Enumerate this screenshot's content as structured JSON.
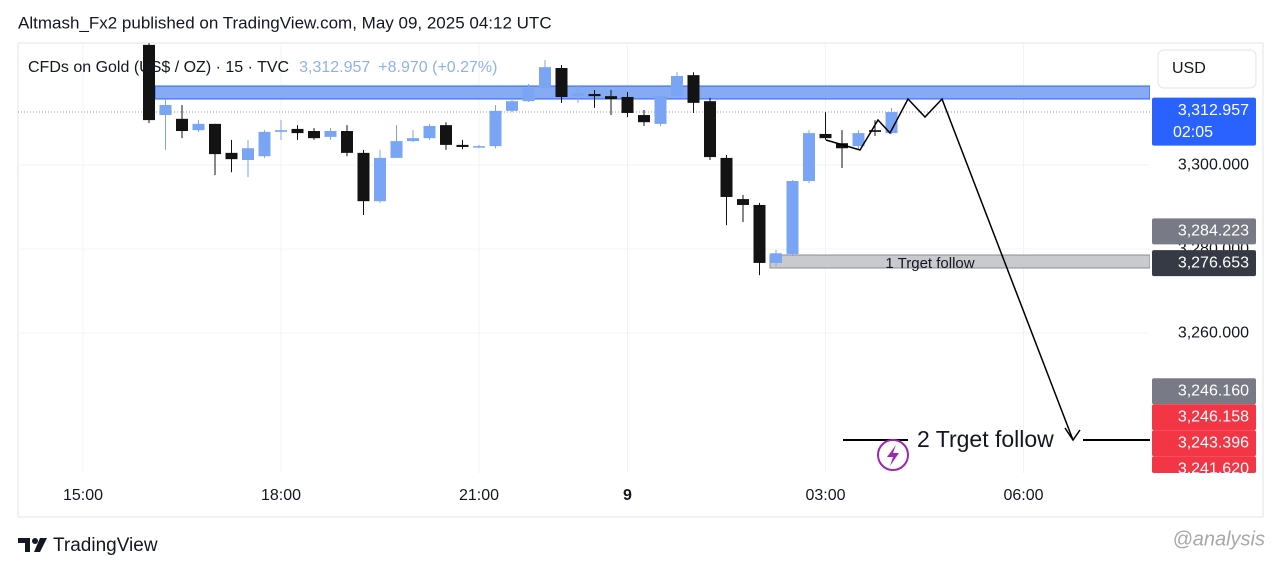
{
  "header": {
    "published": "Altmash_Fx2 published on TradingView.com, May 09, 2025 04:12 UTC",
    "symbol": "CFDs on Gold (US$ / OZ) · 15 · TVC",
    "last": "3,312.957",
    "change": "+8.970 (+0.27%)"
  },
  "currency": "USD",
  "chart_data": {
    "type": "candlestick",
    "categories": [
      null,
      null,
      null,
      null,
      null,
      null,
      null,
      null,
      null,
      null,
      null,
      null,
      null,
      null,
      null,
      null,
      null,
      null,
      null,
      null,
      null,
      null,
      null,
      null,
      null,
      null,
      null,
      null,
      null,
      null,
      null,
      null,
      null,
      null,
      null,
      null,
      null,
      null,
      null,
      null,
      null,
      null,
      null,
      null,
      null,
      null
    ],
    "open": [
      3328.6,
      3311.9,
      3311.0,
      3308.3,
      3309.8,
      3302.9,
      3301.2,
      3302.1,
      3307.9,
      3308.6,
      3308.1,
      3306.7,
      3308.1,
      3302.9,
      3291.4,
      3301.7,
      3305.7,
      3306.4,
      3309.5,
      3304.8,
      3304.3,
      3304.5,
      3312.9,
      3315.2,
      3318.3,
      3323.1,
      3316.4,
      3316.9,
      3316.4,
      3316.2,
      3311.9,
      3309.8,
      3316.4,
      3321.4,
      3315.2,
      3301.7,
      3291.9,
      3290.5,
      3276.7,
      3278.8,
      3296.2,
      3307.4,
      3305.2,
      3304.5,
      3308.3,
      3307.6
    ],
    "high": [
      3329.0,
      3315.5,
      3314.3,
      3310.7,
      3309.8,
      3306.0,
      3306.0,
      3308.3,
      3310.7,
      3309.5,
      3308.8,
      3308.8,
      3309.5,
      3303.6,
      3303.6,
      3309.5,
      3308.3,
      3309.8,
      3310.2,
      3306.0,
      3304.8,
      3314.3,
      3316.7,
      3319.3,
      3325.0,
      3323.8,
      3319.0,
      3317.9,
      3317.9,
      3317.4,
      3313.1,
      3316.7,
      3322.1,
      3322.1,
      3316.0,
      3302.4,
      3292.9,
      3291.0,
      3279.8,
      3296.4,
      3308.3,
      3312.6,
      3308.3,
      3308.3,
      3310.7,
      3313.6
    ],
    "low": [
      3310.0,
      3303.6,
      3306.4,
      3307.9,
      3297.6,
      3298.3,
      3297.1,
      3301.7,
      3306.0,
      3306.0,
      3306.0,
      3306.0,
      3302.1,
      3288.1,
      3291.0,
      3301.7,
      3305.5,
      3306.0,
      3303.6,
      3303.8,
      3304.0,
      3304.0,
      3312.6,
      3315.0,
      3317.9,
      3314.8,
      3314.8,
      3313.6,
      3311.9,
      3311.4,
      3309.3,
      3309.3,
      3316.0,
      3312.4,
      3301.2,
      3285.7,
      3286.4,
      3273.8,
      3275.9,
      3278.3,
      3295.7,
      3306.0,
      3299.3,
      3303.6,
      3306.9,
      3307.4
    ],
    "close": [
      3310.7,
      3314.3,
      3308.1,
      3309.8,
      3302.6,
      3301.4,
      3304.0,
      3307.9,
      3308.3,
      3307.6,
      3306.4,
      3308.1,
      3302.9,
      3291.4,
      3301.7,
      3305.7,
      3306.4,
      3309.3,
      3304.8,
      3304.3,
      3304.5,
      3312.9,
      3315.2,
      3318.3,
      3323.3,
      3316.2,
      3317.1,
      3316.4,
      3315.7,
      3312.4,
      3310.2,
      3316.4,
      3321.2,
      3314.8,
      3301.9,
      3292.4,
      3290.5,
      3276.7,
      3279.0,
      3296.2,
      3307.6,
      3306.4,
      3304.0,
      3307.6,
      3307.9,
      3312.6
    ],
    "up_color": "#7aa5f5",
    "down_color": "#131313",
    "ylim": [
      3226.7,
      3329.05
    ],
    "yticks": [
      {
        "value": 3300,
        "label": "3,300.000"
      },
      {
        "value": 3280,
        "label": "3,280.000"
      },
      {
        "value": 3260,
        "label": "3,260.000"
      }
    ],
    "xticks": [
      {
        "value": -4,
        "label": "15:00"
      },
      {
        "value": 8,
        "label": "18:00"
      },
      {
        "value": 20,
        "label": "21:00"
      },
      {
        "value": 29,
        "label": "9"
      },
      {
        "value": 41,
        "label": "03:00"
      },
      {
        "value": 53,
        "label": "06:00"
      }
    ],
    "grid": true,
    "price_tags": [
      {
        "value": 3312.957,
        "label": "3,312.957",
        "sub": "02:05",
        "color": "#2962ff"
      },
      {
        "value": 3284.223,
        "label": "3,284.223",
        "color": "#787b86"
      },
      {
        "value": 3276.653,
        "label": "3,276.653",
        "color": "#363a45"
      },
      {
        "value": 3246.16,
        "label": "3,246.160",
        "color": "#787b86"
      },
      {
        "value": 3246.158,
        "label": "3,246.158",
        "color": "#f23645"
      },
      {
        "value": 3243.396,
        "label": "3,243.396",
        "color": "#f23645"
      },
      {
        "value": 3241.62,
        "label": "3,241.620",
        "color": "#f23645"
      }
    ],
    "annotations": [
      "1 Trget follow",
      "2 Trget follow"
    ]
  },
  "footer": {
    "brand": "TradingView",
    "watermark": "@analysis"
  }
}
